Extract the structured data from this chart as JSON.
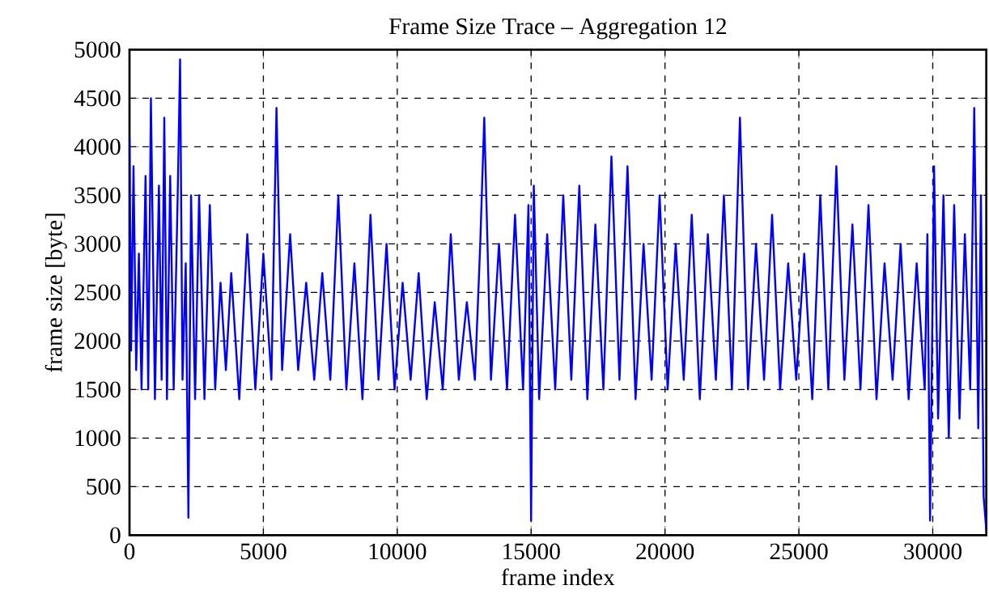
{
  "chart_data": {
    "type": "line",
    "title": "Frame Size Trace – Aggregation 12",
    "xlabel": "frame index",
    "ylabel": "frame size [byte]",
    "xlim": [
      0,
      32000
    ],
    "ylim": [
      0,
      5000
    ],
    "xticks": [
      0,
      5000,
      10000,
      15000,
      20000,
      25000,
      30000
    ],
    "yticks": [
      0,
      500,
      1000,
      1500,
      2000,
      2500,
      3000,
      3500,
      4000,
      4500,
      5000
    ],
    "grid": true,
    "line_style": "solid",
    "marker": "none",
    "series": [
      {
        "color": "#0000ff",
        "x": [
          0,
          60,
          150,
          250,
          350,
          450,
          600,
          700,
          800,
          950,
          1100,
          1200,
          1300,
          1400,
          1520,
          1650,
          1800,
          1890,
          1980,
          2100,
          2200,
          2300,
          2450,
          2600,
          2800,
          3000,
          3200,
          3400,
          3600,
          3800,
          4100,
          4400,
          4700,
          5000,
          5300,
          5490,
          5700,
          6000,
          6300,
          6600,
          6900,
          7200,
          7500,
          7800,
          8100,
          8400,
          8700,
          9000,
          9300,
          9600,
          9900,
          10200,
          10500,
          10800,
          11100,
          11400,
          11700,
          12000,
          12300,
          12600,
          12900,
          13100,
          13250,
          13500,
          13800,
          14100,
          14400,
          14700,
          14900,
          15000,
          15100,
          15300,
          15600,
          15900,
          16200,
          16500,
          16800,
          17100,
          17400,
          17700,
          18000,
          18300,
          18600,
          18900,
          19200,
          19500,
          19800,
          20100,
          20400,
          20700,
          21000,
          21300,
          21600,
          21900,
          22200,
          22500,
          22800,
          23100,
          23400,
          23700,
          24000,
          24300,
          24600,
          24900,
          25200,
          25500,
          25800,
          26100,
          26400,
          26700,
          27000,
          27300,
          27600,
          27900,
          28200,
          28500,
          28800,
          29100,
          29400,
          29700,
          29800,
          29900,
          30050,
          30200,
          30400,
          30600,
          30800,
          31000,
          31200,
          31400,
          31550,
          31700,
          31800,
          31900,
          32000
        ],
        "values": [
          4100,
          1900,
          3800,
          1700,
          2900,
          1500,
          3700,
          1500,
          4500,
          1400,
          3600,
          1600,
          4300,
          1400,
          3700,
          1500,
          3500,
          4900,
          1600,
          2800,
          180,
          3500,
          1400,
          3500,
          1400,
          3400,
          1500,
          2600,
          1700,
          2700,
          1400,
          3100,
          1500,
          2900,
          1600,
          4400,
          1700,
          3100,
          1700,
          2600,
          1600,
          2700,
          1600,
          3500,
          1500,
          2800,
          1400,
          3300,
          1600,
          3000,
          1500,
          2600,
          1600,
          2700,
          1400,
          2400,
          1500,
          3100,
          1600,
          2400,
          1600,
          3000,
          4300,
          1600,
          3000,
          1500,
          3300,
          1500,
          3400,
          150,
          3600,
          1400,
          3100,
          1500,
          3500,
          1600,
          3600,
          1400,
          3200,
          1500,
          3900,
          1600,
          3800,
          1400,
          3000,
          1600,
          3500,
          1500,
          3000,
          1600,
          3300,
          1400,
          3100,
          1600,
          3500,
          1500,
          4300,
          1500,
          3000,
          1600,
          3300,
          1500,
          2800,
          1600,
          2900,
          1400,
          3500,
          1500,
          3800,
          1600,
          3200,
          1500,
          3400,
          1400,
          2800,
          1600,
          3000,
          1400,
          2800,
          1500,
          3100,
          150,
          3800,
          1200,
          3500,
          1000,
          3400,
          1200,
          3100,
          1500,
          4400,
          1100,
          3500,
          400,
          50
        ]
      }
    ]
  }
}
